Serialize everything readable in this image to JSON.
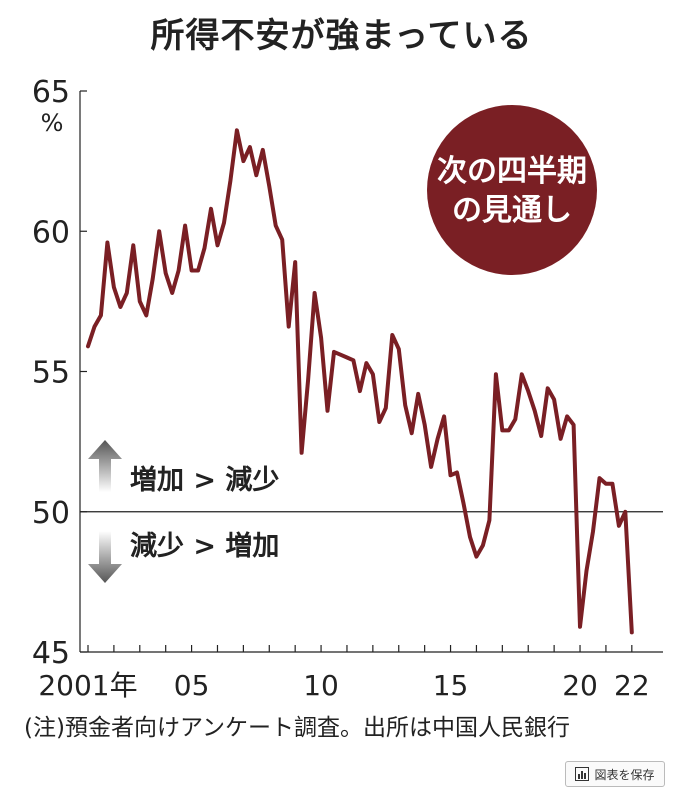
{
  "title": "所得不安が強まっている",
  "note": "(注)預金者向けアンケート調査。出所は中国人民銀行",
  "save_button": {
    "label": "図表を保存",
    "icon": "bar-chart-icon"
  },
  "badge": {
    "line1": "次の四半期",
    "line2": "の見通し"
  },
  "labels": {
    "up": "増加 > 減少",
    "down": "減少 > 増加"
  },
  "colors": {
    "line": "#7a1f24",
    "badge": "#7a1f24",
    "arrow": "#555555"
  },
  "chart_data": {
    "type": "line",
    "title": "所得不安が強まっている",
    "ylabel": "%",
    "ylim": [
      45,
      65
    ],
    "yticks": [
      45,
      50,
      55,
      60,
      65
    ],
    "xlim": [
      2001,
      2022.2
    ],
    "xticks": [
      {
        "value": 2001,
        "label": "2001年"
      },
      {
        "value": 2005,
        "label": "05"
      },
      {
        "value": 2010,
        "label": "10"
      },
      {
        "value": 2015,
        "label": "15"
      },
      {
        "value": 2020,
        "label": "20"
      },
      {
        "value": 2022,
        "label": "22"
      }
    ],
    "reference_line": 50,
    "series": [
      {
        "x": [
          2001.0,
          2001.25,
          2001.5,
          2001.75,
          2002.0,
          2002.25,
          2002.5,
          2002.75,
          2003.0,
          2003.25,
          2003.5,
          2003.75,
          2004.0,
          2004.25,
          2004.5,
          2004.75,
          2005.0,
          2005.25,
          2005.5,
          2005.75,
          2006.0,
          2006.25,
          2006.5,
          2006.75,
          2007.0,
          2007.25,
          2007.5,
          2007.75,
          2008.0,
          2008.25,
          2008.5,
          2008.75,
          2009.0,
          2009.25,
          2009.5,
          2009.75,
          2010.0,
          2010.25,
          2010.5,
          2010.75,
          2011.0,
          2011.25,
          2011.5,
          2011.75,
          2012.0,
          2012.25,
          2012.5,
          2012.75,
          2013.0,
          2013.25,
          2013.5,
          2013.75,
          2014.0,
          2014.25,
          2014.5,
          2014.75,
          2015.0,
          2015.25,
          2015.5,
          2015.75,
          2016.0,
          2016.25,
          2016.5,
          2016.75,
          2017.0,
          2017.25,
          2017.5,
          2017.75,
          2018.0,
          2018.25,
          2018.5,
          2018.75,
          2019.0,
          2019.25,
          2019.5,
          2019.75,
          2020.0,
          2020.25,
          2020.5,
          2020.75,
          2021.0,
          2021.25,
          2021.5,
          2021.75,
          2022.0
        ],
        "values": [
          55.9,
          56.6,
          57.0,
          59.6,
          58.0,
          57.3,
          57.8,
          59.5,
          57.5,
          57.0,
          58.3,
          60.0,
          58.5,
          57.8,
          58.6,
          60.2,
          58.6,
          58.6,
          59.4,
          60.8,
          59.5,
          60.3,
          61.8,
          63.6,
          62.5,
          63.0,
          62.0,
          62.9,
          61.6,
          60.2,
          59.7,
          56.6,
          58.9,
          52.1,
          54.7,
          57.8,
          56.2,
          53.6,
          55.7,
          55.6,
          55.5,
          55.4,
          54.3,
          55.3,
          54.9,
          53.2,
          53.7,
          56.3,
          55.8,
          53.8,
          52.8,
          54.2,
          53.1,
          51.6,
          52.6,
          53.4,
          51.3,
          51.4,
          50.3,
          49.1,
          48.4,
          48.8,
          49.7,
          54.9,
          52.9,
          52.9,
          53.3,
          54.9,
          54.3,
          53.6,
          52.7,
          54.4,
          54.0,
          52.6,
          53.4,
          53.1,
          45.9,
          47.9,
          49.3,
          51.2,
          51.0,
          51.0,
          49.5,
          50.0,
          45.7
        ]
      }
    ]
  }
}
